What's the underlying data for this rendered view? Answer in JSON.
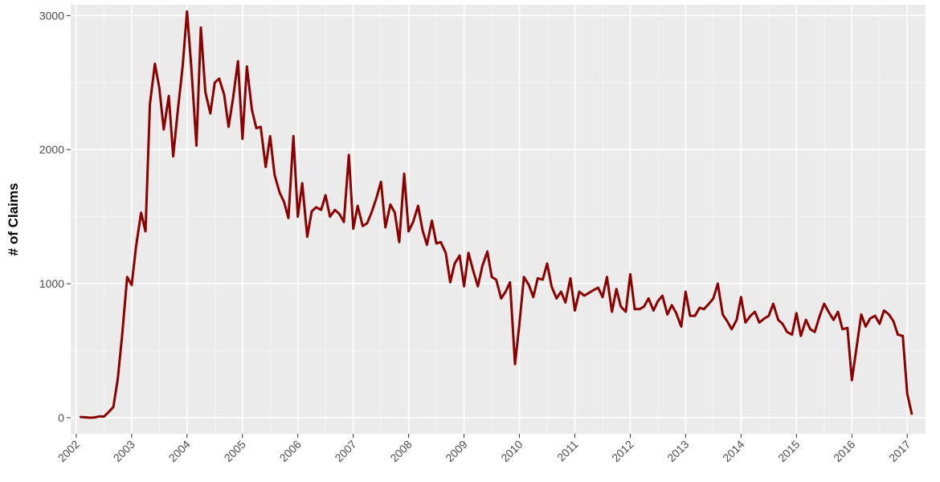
{
  "chart_data": {
    "type": "line",
    "title": "",
    "xlabel": "",
    "ylabel": "# of Claims",
    "xlim": [
      2001.9,
      2017.33
    ],
    "ylim": [
      -120,
      3080
    ],
    "y_ticks": [
      0,
      1000,
      2000,
      3000
    ],
    "y_tick_labels": [
      "0",
      "1000",
      "2000",
      "3000"
    ],
    "x_ticks": [
      2002,
      2003,
      2004,
      2005,
      2006,
      2007,
      2008,
      2009,
      2010,
      2011,
      2012,
      2013,
      2014,
      2015,
      2016,
      2017
    ],
    "x_tick_labels": [
      "2002",
      "2003",
      "2004",
      "2005",
      "2006",
      "2007",
      "2008",
      "2009",
      "2010",
      "2011",
      "2012",
      "2013",
      "2014",
      "2015",
      "2016",
      "2017"
    ],
    "grid": true,
    "legend": "none",
    "series": [
      {
        "color": "#8b0000",
        "points": [
          [
            2002.08,
            5
          ],
          [
            2002.17,
            3
          ],
          [
            2002.25,
            0
          ],
          [
            2002.33,
            2
          ],
          [
            2002.42,
            10
          ],
          [
            2002.5,
            8
          ],
          [
            2002.58,
            40
          ],
          [
            2002.67,
            80
          ],
          [
            2002.75,
            290
          ],
          [
            2002.83,
            620
          ],
          [
            2002.92,
            1050
          ],
          [
            2003.0,
            990
          ],
          [
            2003.08,
            1280
          ],
          [
            2003.17,
            1530
          ],
          [
            2003.25,
            1390
          ],
          [
            2003.33,
            2340
          ],
          [
            2003.42,
            2640
          ],
          [
            2003.5,
            2460
          ],
          [
            2003.58,
            2150
          ],
          [
            2003.67,
            2400
          ],
          [
            2003.75,
            1950
          ],
          [
            2003.83,
            2280
          ],
          [
            2003.92,
            2620
          ],
          [
            2004.0,
            3030
          ],
          [
            2004.08,
            2600
          ],
          [
            2004.17,
            2030
          ],
          [
            2004.25,
            2910
          ],
          [
            2004.33,
            2430
          ],
          [
            2004.42,
            2270
          ],
          [
            2004.5,
            2500
          ],
          [
            2004.58,
            2530
          ],
          [
            2004.67,
            2410
          ],
          [
            2004.75,
            2170
          ],
          [
            2004.83,
            2380
          ],
          [
            2004.92,
            2660
          ],
          [
            2005.0,
            2080
          ],
          [
            2005.08,
            2620
          ],
          [
            2005.17,
            2300
          ],
          [
            2005.25,
            2160
          ],
          [
            2005.33,
            2170
          ],
          [
            2005.42,
            1870
          ],
          [
            2005.5,
            2100
          ],
          [
            2005.58,
            1810
          ],
          [
            2005.67,
            1680
          ],
          [
            2005.75,
            1610
          ],
          [
            2005.83,
            1490
          ],
          [
            2005.92,
            2100
          ],
          [
            2006.0,
            1500
          ],
          [
            2006.08,
            1750
          ],
          [
            2006.17,
            1350
          ],
          [
            2006.25,
            1540
          ],
          [
            2006.33,
            1570
          ],
          [
            2006.42,
            1550
          ],
          [
            2006.5,
            1660
          ],
          [
            2006.58,
            1500
          ],
          [
            2006.67,
            1550
          ],
          [
            2006.75,
            1520
          ],
          [
            2006.83,
            1460
          ],
          [
            2006.92,
            1960
          ],
          [
            2007.0,
            1410
          ],
          [
            2007.08,
            1580
          ],
          [
            2007.17,
            1430
          ],
          [
            2007.25,
            1450
          ],
          [
            2007.33,
            1530
          ],
          [
            2007.42,
            1640
          ],
          [
            2007.5,
            1760
          ],
          [
            2007.58,
            1420
          ],
          [
            2007.67,
            1590
          ],
          [
            2007.75,
            1530
          ],
          [
            2007.83,
            1310
          ],
          [
            2007.92,
            1820
          ],
          [
            2008.0,
            1390
          ],
          [
            2008.08,
            1460
          ],
          [
            2008.17,
            1580
          ],
          [
            2008.25,
            1400
          ],
          [
            2008.33,
            1290
          ],
          [
            2008.42,
            1470
          ],
          [
            2008.5,
            1300
          ],
          [
            2008.58,
            1310
          ],
          [
            2008.67,
            1230
          ],
          [
            2008.75,
            1010
          ],
          [
            2008.83,
            1150
          ],
          [
            2008.92,
            1210
          ],
          [
            2009.0,
            980
          ],
          [
            2009.08,
            1230
          ],
          [
            2009.17,
            1090
          ],
          [
            2009.25,
            980
          ],
          [
            2009.33,
            1130
          ],
          [
            2009.42,
            1240
          ],
          [
            2009.5,
            1050
          ],
          [
            2009.58,
            1030
          ],
          [
            2009.67,
            890
          ],
          [
            2009.75,
            940
          ],
          [
            2009.83,
            1010
          ],
          [
            2009.92,
            400
          ],
          [
            2010.0,
            700
          ],
          [
            2010.08,
            1050
          ],
          [
            2010.17,
            990
          ],
          [
            2010.25,
            900
          ],
          [
            2010.33,
            1040
          ],
          [
            2010.42,
            1030
          ],
          [
            2010.5,
            1150
          ],
          [
            2010.58,
            980
          ],
          [
            2010.67,
            890
          ],
          [
            2010.75,
            940
          ],
          [
            2010.83,
            860
          ],
          [
            2010.92,
            1040
          ],
          [
            2011.0,
            800
          ],
          [
            2011.08,
            940
          ],
          [
            2011.17,
            910
          ],
          [
            2011.25,
            930
          ],
          [
            2011.33,
            950
          ],
          [
            2011.42,
            970
          ],
          [
            2011.5,
            900
          ],
          [
            2011.58,
            1050
          ],
          [
            2011.67,
            790
          ],
          [
            2011.75,
            960
          ],
          [
            2011.83,
            830
          ],
          [
            2011.92,
            790
          ],
          [
            2012.0,
            1070
          ],
          [
            2012.08,
            810
          ],
          [
            2012.17,
            810
          ],
          [
            2012.25,
            830
          ],
          [
            2012.33,
            890
          ],
          [
            2012.42,
            800
          ],
          [
            2012.5,
            870
          ],
          [
            2012.58,
            910
          ],
          [
            2012.67,
            770
          ],
          [
            2012.75,
            840
          ],
          [
            2012.83,
            780
          ],
          [
            2012.92,
            680
          ],
          [
            2013.0,
            940
          ],
          [
            2013.08,
            760
          ],
          [
            2013.17,
            760
          ],
          [
            2013.25,
            820
          ],
          [
            2013.33,
            810
          ],
          [
            2013.42,
            850
          ],
          [
            2013.5,
            890
          ],
          [
            2013.58,
            1000
          ],
          [
            2013.67,
            770
          ],
          [
            2013.75,
            720
          ],
          [
            2013.83,
            660
          ],
          [
            2013.92,
            730
          ],
          [
            2014.0,
            900
          ],
          [
            2014.08,
            710
          ],
          [
            2014.17,
            760
          ],
          [
            2014.25,
            790
          ],
          [
            2014.33,
            710
          ],
          [
            2014.42,
            740
          ],
          [
            2014.5,
            760
          ],
          [
            2014.58,
            850
          ],
          [
            2014.67,
            730
          ],
          [
            2014.75,
            700
          ],
          [
            2014.83,
            640
          ],
          [
            2014.92,
            620
          ],
          [
            2015.0,
            780
          ],
          [
            2015.08,
            610
          ],
          [
            2015.17,
            730
          ],
          [
            2015.25,
            660
          ],
          [
            2015.33,
            640
          ],
          [
            2015.42,
            760
          ],
          [
            2015.5,
            850
          ],
          [
            2015.58,
            790
          ],
          [
            2015.67,
            730
          ],
          [
            2015.75,
            790
          ],
          [
            2015.83,
            660
          ],
          [
            2015.92,
            670
          ],
          [
            2016.0,
            280
          ],
          [
            2016.08,
            510
          ],
          [
            2016.17,
            770
          ],
          [
            2016.25,
            680
          ],
          [
            2016.33,
            740
          ],
          [
            2016.42,
            760
          ],
          [
            2016.5,
            700
          ],
          [
            2016.58,
            800
          ],
          [
            2016.67,
            770
          ],
          [
            2016.75,
            720
          ],
          [
            2016.83,
            620
          ],
          [
            2016.92,
            610
          ],
          [
            2017.0,
            180
          ],
          [
            2017.08,
            30
          ]
        ]
      }
    ]
  }
}
